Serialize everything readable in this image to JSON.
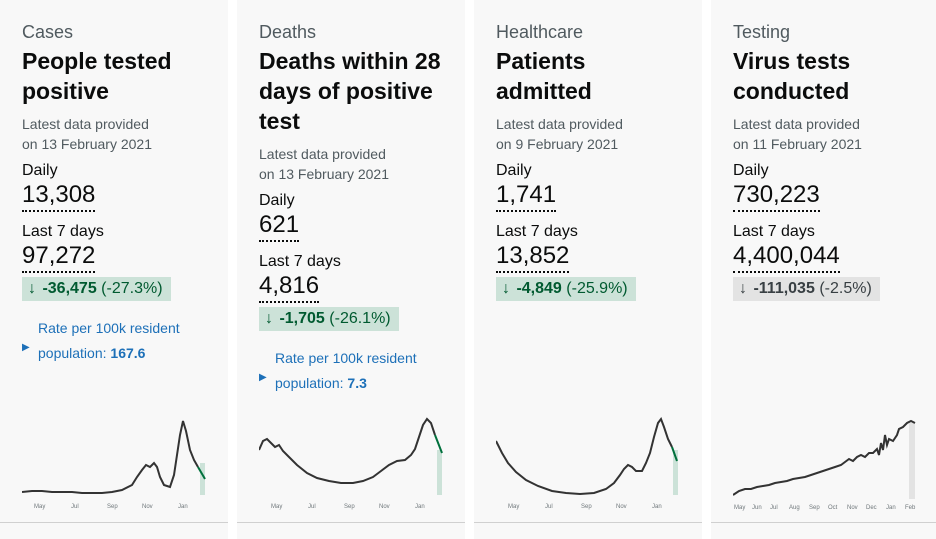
{
  "cards": [
    {
      "category": "Cases",
      "title_lines": [
        "People tested",
        "positive"
      ],
      "latest_lines": [
        "Latest data provided",
        "on 13 February 2021"
      ],
      "daily_label": "Daily",
      "daily_value": "13,308",
      "last7_label": "Last 7 days",
      "last7_value": "97,272",
      "change_arrow": "↓",
      "change_value": "-36,475",
      "change_pct": "(-27.3%)",
      "rate_line1": "Rate per 100k resident",
      "rate_line2": "population:",
      "rate_value": "167.6",
      "ticks": [
        "May",
        "Jul",
        "Sep",
        "Nov",
        "Jan"
      ]
    },
    {
      "category": "Deaths",
      "title_lines": [
        "Deaths within 28",
        "days of positive",
        "test"
      ],
      "latest_lines": [
        "Latest data provided",
        "on 13 February 2021"
      ],
      "daily_label": "Daily",
      "daily_value": "621",
      "last7_label": "Last 7 days",
      "last7_value": "4,816",
      "change_arrow": "↓",
      "change_value": "-1,705",
      "change_pct": "(-26.1%)",
      "rate_line1": "Rate per 100k resident",
      "rate_line2": "population:",
      "rate_value": "7.3",
      "ticks": [
        "May",
        "Jul",
        "Sep",
        "Nov",
        "Jan"
      ]
    },
    {
      "category": "Healthcare",
      "title_lines": [
        "Patients",
        "admitted"
      ],
      "latest_lines": [
        "Latest data provided",
        "on 9 February 2021"
      ],
      "daily_label": "Daily",
      "daily_value": "1,741",
      "last7_label": "Last 7 days",
      "last7_value": "13,852",
      "change_arrow": "↓",
      "change_value": "-4,849",
      "change_pct": "(-25.9%)",
      "ticks": [
        "May",
        "Jul",
        "Sep",
        "Nov",
        "Jan"
      ]
    },
    {
      "category": "Testing",
      "title_lines": [
        "Virus tests",
        "conducted"
      ],
      "latest_lines": [
        "Latest data provided",
        "on 11 February 2021"
      ],
      "daily_label": "Daily",
      "daily_value": "730,223",
      "last7_label": "Last 7 days",
      "last7_value": "4,400,044",
      "change_arrow": "↓",
      "change_value": "-111,035",
      "change_pct": "(-2.5%)",
      "ticks": [
        "May",
        "Jun",
        "Jul",
        "Aug",
        "Sep",
        "Oct",
        "Nov",
        "Dec",
        "Jan",
        "Feb"
      ]
    }
  ],
  "colors": {
    "line": "#333333",
    "recent_line": "#00703c",
    "recent_band": "#cce2d8",
    "testing_band": "#e3e3e3",
    "link": "#1d70b8"
  }
}
